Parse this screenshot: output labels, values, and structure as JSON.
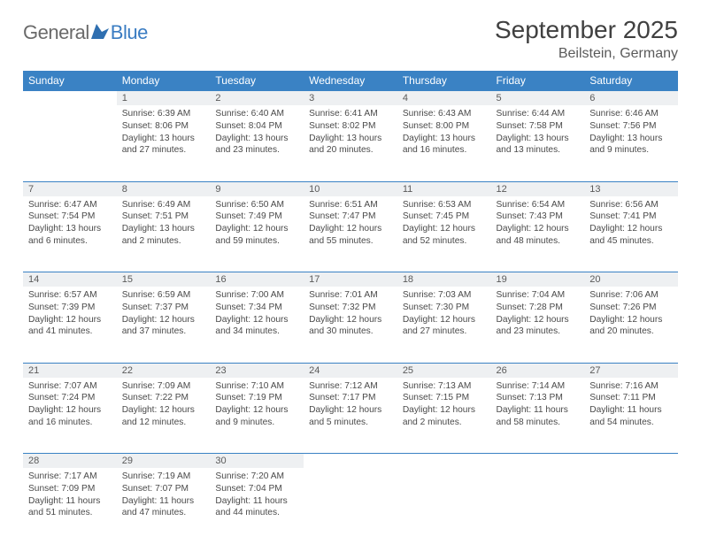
{
  "brand": {
    "general": "General",
    "blue": "Blue"
  },
  "title": "September 2025",
  "location": "Beilstein, Germany",
  "header_color": "#3a82c4",
  "daynum_bg": "#eef0f2",
  "daynum_border": "#3a82c4",
  "text_color": "#4a4a4a",
  "weekdays": [
    "Sunday",
    "Monday",
    "Tuesday",
    "Wednesday",
    "Thursday",
    "Friday",
    "Saturday"
  ],
  "weeks": [
    {
      "nums": [
        "",
        "1",
        "2",
        "3",
        "4",
        "5",
        "6"
      ],
      "cells": [
        null,
        {
          "sunrise": "Sunrise: 6:39 AM",
          "sunset": "Sunset: 8:06 PM",
          "daylight1": "Daylight: 13 hours",
          "daylight2": "and 27 minutes."
        },
        {
          "sunrise": "Sunrise: 6:40 AM",
          "sunset": "Sunset: 8:04 PM",
          "daylight1": "Daylight: 13 hours",
          "daylight2": "and 23 minutes."
        },
        {
          "sunrise": "Sunrise: 6:41 AM",
          "sunset": "Sunset: 8:02 PM",
          "daylight1": "Daylight: 13 hours",
          "daylight2": "and 20 minutes."
        },
        {
          "sunrise": "Sunrise: 6:43 AM",
          "sunset": "Sunset: 8:00 PM",
          "daylight1": "Daylight: 13 hours",
          "daylight2": "and 16 minutes."
        },
        {
          "sunrise": "Sunrise: 6:44 AM",
          "sunset": "Sunset: 7:58 PM",
          "daylight1": "Daylight: 13 hours",
          "daylight2": "and 13 minutes."
        },
        {
          "sunrise": "Sunrise: 6:46 AM",
          "sunset": "Sunset: 7:56 PM",
          "daylight1": "Daylight: 13 hours",
          "daylight2": "and 9 minutes."
        }
      ]
    },
    {
      "nums": [
        "7",
        "8",
        "9",
        "10",
        "11",
        "12",
        "13"
      ],
      "cells": [
        {
          "sunrise": "Sunrise: 6:47 AM",
          "sunset": "Sunset: 7:54 PM",
          "daylight1": "Daylight: 13 hours",
          "daylight2": "and 6 minutes."
        },
        {
          "sunrise": "Sunrise: 6:49 AM",
          "sunset": "Sunset: 7:51 PM",
          "daylight1": "Daylight: 13 hours",
          "daylight2": "and 2 minutes."
        },
        {
          "sunrise": "Sunrise: 6:50 AM",
          "sunset": "Sunset: 7:49 PM",
          "daylight1": "Daylight: 12 hours",
          "daylight2": "and 59 minutes."
        },
        {
          "sunrise": "Sunrise: 6:51 AM",
          "sunset": "Sunset: 7:47 PM",
          "daylight1": "Daylight: 12 hours",
          "daylight2": "and 55 minutes."
        },
        {
          "sunrise": "Sunrise: 6:53 AM",
          "sunset": "Sunset: 7:45 PM",
          "daylight1": "Daylight: 12 hours",
          "daylight2": "and 52 minutes."
        },
        {
          "sunrise": "Sunrise: 6:54 AM",
          "sunset": "Sunset: 7:43 PM",
          "daylight1": "Daylight: 12 hours",
          "daylight2": "and 48 minutes."
        },
        {
          "sunrise": "Sunrise: 6:56 AM",
          "sunset": "Sunset: 7:41 PM",
          "daylight1": "Daylight: 12 hours",
          "daylight2": "and 45 minutes."
        }
      ]
    },
    {
      "nums": [
        "14",
        "15",
        "16",
        "17",
        "18",
        "19",
        "20"
      ],
      "cells": [
        {
          "sunrise": "Sunrise: 6:57 AM",
          "sunset": "Sunset: 7:39 PM",
          "daylight1": "Daylight: 12 hours",
          "daylight2": "and 41 minutes."
        },
        {
          "sunrise": "Sunrise: 6:59 AM",
          "sunset": "Sunset: 7:37 PM",
          "daylight1": "Daylight: 12 hours",
          "daylight2": "and 37 minutes."
        },
        {
          "sunrise": "Sunrise: 7:00 AM",
          "sunset": "Sunset: 7:34 PM",
          "daylight1": "Daylight: 12 hours",
          "daylight2": "and 34 minutes."
        },
        {
          "sunrise": "Sunrise: 7:01 AM",
          "sunset": "Sunset: 7:32 PM",
          "daylight1": "Daylight: 12 hours",
          "daylight2": "and 30 minutes."
        },
        {
          "sunrise": "Sunrise: 7:03 AM",
          "sunset": "Sunset: 7:30 PM",
          "daylight1": "Daylight: 12 hours",
          "daylight2": "and 27 minutes."
        },
        {
          "sunrise": "Sunrise: 7:04 AM",
          "sunset": "Sunset: 7:28 PM",
          "daylight1": "Daylight: 12 hours",
          "daylight2": "and 23 minutes."
        },
        {
          "sunrise": "Sunrise: 7:06 AM",
          "sunset": "Sunset: 7:26 PM",
          "daylight1": "Daylight: 12 hours",
          "daylight2": "and 20 minutes."
        }
      ]
    },
    {
      "nums": [
        "21",
        "22",
        "23",
        "24",
        "25",
        "26",
        "27"
      ],
      "cells": [
        {
          "sunrise": "Sunrise: 7:07 AM",
          "sunset": "Sunset: 7:24 PM",
          "daylight1": "Daylight: 12 hours",
          "daylight2": "and 16 minutes."
        },
        {
          "sunrise": "Sunrise: 7:09 AM",
          "sunset": "Sunset: 7:22 PM",
          "daylight1": "Daylight: 12 hours",
          "daylight2": "and 12 minutes."
        },
        {
          "sunrise": "Sunrise: 7:10 AM",
          "sunset": "Sunset: 7:19 PM",
          "daylight1": "Daylight: 12 hours",
          "daylight2": "and 9 minutes."
        },
        {
          "sunrise": "Sunrise: 7:12 AM",
          "sunset": "Sunset: 7:17 PM",
          "daylight1": "Daylight: 12 hours",
          "daylight2": "and 5 minutes."
        },
        {
          "sunrise": "Sunrise: 7:13 AM",
          "sunset": "Sunset: 7:15 PM",
          "daylight1": "Daylight: 12 hours",
          "daylight2": "and 2 minutes."
        },
        {
          "sunrise": "Sunrise: 7:14 AM",
          "sunset": "Sunset: 7:13 PM",
          "daylight1": "Daylight: 11 hours",
          "daylight2": "and 58 minutes."
        },
        {
          "sunrise": "Sunrise: 7:16 AM",
          "sunset": "Sunset: 7:11 PM",
          "daylight1": "Daylight: 11 hours",
          "daylight2": "and 54 minutes."
        }
      ]
    },
    {
      "nums": [
        "28",
        "29",
        "30",
        "",
        "",
        "",
        ""
      ],
      "cells": [
        {
          "sunrise": "Sunrise: 7:17 AM",
          "sunset": "Sunset: 7:09 PM",
          "daylight1": "Daylight: 11 hours",
          "daylight2": "and 51 minutes."
        },
        {
          "sunrise": "Sunrise: 7:19 AM",
          "sunset": "Sunset: 7:07 PM",
          "daylight1": "Daylight: 11 hours",
          "daylight2": "and 47 minutes."
        },
        {
          "sunrise": "Sunrise: 7:20 AM",
          "sunset": "Sunset: 7:04 PM",
          "daylight1": "Daylight: 11 hours",
          "daylight2": "and 44 minutes."
        },
        null,
        null,
        null,
        null
      ]
    }
  ]
}
